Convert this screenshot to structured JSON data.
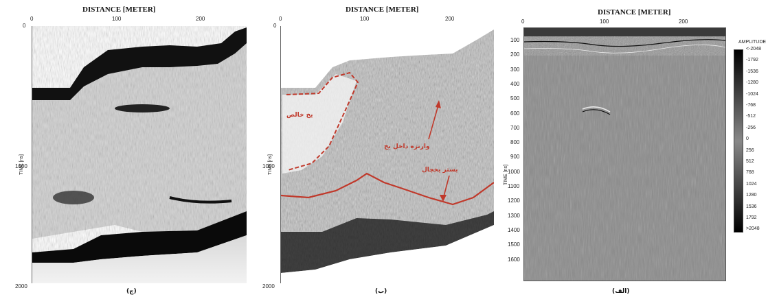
{
  "panels": [
    {
      "id": "c",
      "title": "DISTANCE [METER]",
      "x_ticks": [
        "0",
        "100",
        "200"
      ],
      "y_ticks": [
        "0",
        "1000",
        "2000"
      ],
      "ylabel": "TIME [ns]",
      "caption": "(ج)"
    },
    {
      "id": "b",
      "title": "DISTANCE [METER]",
      "x_ticks": [
        "0",
        "100",
        "200"
      ],
      "y_ticks": [
        "0",
        "1000",
        "2000"
      ],
      "ylabel": "TIME [ns]",
      "caption": "(ب)",
      "annotations": {
        "pure_ice": "یخ خالص",
        "inner_ice": "وارنزه داخل یخ",
        "glacier_bed": "بستر یخچال"
      }
    },
    {
      "id": "a",
      "title": "DISTANCE [METER]",
      "x_ticks": [
        "0",
        "100",
        "200"
      ],
      "y_ticks": [
        "100",
        "200",
        "300",
        "400",
        "500",
        "600",
        "700",
        "800",
        "900",
        "1000",
        "1100",
        "1200",
        "1300",
        "1400",
        "1500",
        "1600"
      ],
      "ylabel": "TIME [ns]",
      "caption": "(الف)"
    }
  ],
  "colorbar": {
    "title": "AMPLITUDE",
    "labels": [
      "<-2048",
      "-1792",
      "-1536",
      "-1280",
      "-1024",
      "-768",
      "-512",
      "-256",
      "0",
      "256",
      "512",
      "768",
      "1024",
      "1280",
      "1536",
      "1792",
      ">2048"
    ]
  }
}
